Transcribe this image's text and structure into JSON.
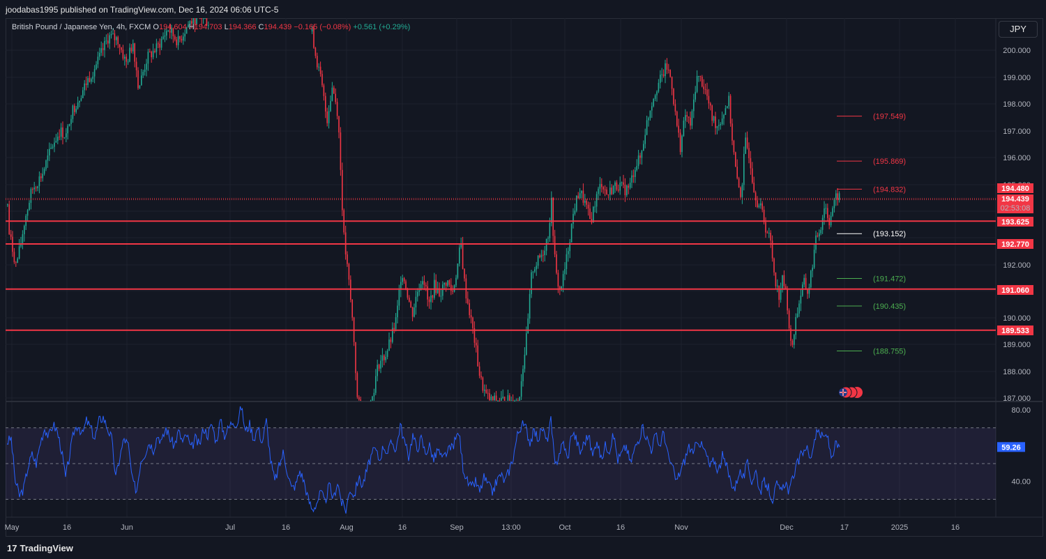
{
  "header": {
    "publisher": "joodabas1995 published on TradingView.com, Dec 16, 2024 06:06 UTC-5"
  },
  "legend": {
    "symbol": "British Pound / Japanese Yen, 4h, FXCM",
    "open_label": "O",
    "open": "194.604",
    "high_label": "H",
    "high": "194.703",
    "low_label": "L",
    "low": "194.366",
    "close_label": "C",
    "close": "194.439",
    "change": "−0.165 (−0.08%)",
    "change2": "+0.561 (+0.29%)"
  },
  "currency_button": "JPY",
  "footer": {
    "brand": "TradingView"
  },
  "colors": {
    "background": "#131722",
    "up": "#22ab94",
    "down": "#f23645",
    "rsi": "#2962ff",
    "level_line": "#f23645"
  },
  "chart_data": [
    {
      "type": "candlestick",
      "symbol": "British Pound / Japanese Yen",
      "interval": "4h",
      "y_axis": [
        "200.000",
        "199.000",
        "198.000",
        "197.000",
        "196.000",
        "195.000",
        "192.000",
        "191.000",
        "190.000",
        "189.000",
        "188.000",
        "187.000"
      ],
      "ylim": [
        186.9,
        201.3
      ],
      "x_axis": [
        "May",
        "16",
        "Jun",
        "Jul",
        "16",
        "Aug",
        "16",
        "Sep",
        "13:00",
        "Oct",
        "16",
        "Nov",
        "Dec",
        "17",
        "2025",
        "16"
      ],
      "horizontal_levels": [
        {
          "price": 194.48,
          "label": "194.480"
        },
        {
          "price": 194.439,
          "label": "194.439",
          "sublabel": "02:53:08"
        },
        {
          "price": 193.625,
          "label": "193.625"
        },
        {
          "price": 192.77,
          "label": "192.770"
        },
        {
          "price": 191.06,
          "label": "191.060"
        },
        {
          "price": 189.533,
          "label": "189.533"
        }
      ],
      "target_levels": [
        {
          "price": 197.549,
          "label": "(197.549)",
          "color": "#f23645"
        },
        {
          "price": 195.869,
          "label": "(195.869)",
          "color": "#f23645"
        },
        {
          "price": 194.832,
          "label": "(194.832)",
          "color": "#f23645"
        },
        {
          "price": 193.152,
          "label": "(193.152)",
          "color": "#ffffff"
        },
        {
          "price": 191.472,
          "label": "(191.472)",
          "color": "#4caf50"
        },
        {
          "price": 190.435,
          "label": "(190.435)",
          "color": "#4caf50"
        },
        {
          "price": 188.755,
          "label": "(188.755)",
          "color": "#4caf50"
        }
      ],
      "price_path": [
        [
          0,
          196.6
        ],
        [
          5,
          196.8
        ],
        [
          12,
          193.2
        ],
        [
          22,
          192.0
        ],
        [
          28,
          192.6
        ],
        [
          35,
          193.7
        ],
        [
          45,
          194.8
        ],
        [
          60,
          195.4
        ],
        [
          75,
          196.5
        ],
        [
          85,
          197.0
        ],
        [
          95,
          196.8
        ],
        [
          100,
          197.6
        ],
        [
          110,
          198.1
        ],
        [
          125,
          198.9
        ],
        [
          140,
          199.6
        ],
        [
          155,
          200.5
        ],
        [
          168,
          200.4
        ],
        [
          180,
          199.5
        ],
        [
          190,
          200.3
        ],
        [
          198,
          198.6
        ],
        [
          210,
          199.7
        ],
        [
          225,
          200.1
        ],
        [
          240,
          200.8
        ],
        [
          255,
          200.3
        ],
        [
          270,
          201.0
        ],
        [
          285,
          201.3
        ],
        [
          300,
          201.0
        ],
        [
          445,
          201.0
        ],
        [
          452,
          199.8
        ],
        [
          460,
          198.8
        ],
        [
          468,
          197.4
        ],
        [
          476,
          198.7
        ],
        [
          484,
          197.6
        ],
        [
          492,
          193.1
        ],
        [
          500,
          191.2
        ],
        [
          506,
          189.5
        ],
        [
          512,
          186.8
        ],
        [
          522,
          186.5
        ],
        [
          532,
          186.9
        ],
        [
          542,
          188.3
        ],
        [
          552,
          188.6
        ],
        [
          560,
          189.2
        ],
        [
          568,
          190.0
        ],
        [
          575,
          191.8
        ],
        [
          582,
          191.1
        ],
        [
          590,
          190.1
        ],
        [
          598,
          191.0
        ],
        [
          606,
          191.6
        ],
        [
          614,
          190.4
        ],
        [
          622,
          191.2
        ],
        [
          630,
          190.9
        ],
        [
          640,
          191.4
        ],
        [
          648,
          190.9
        ],
        [
          655,
          191.9
        ],
        [
          660,
          192.8
        ],
        [
          666,
          191.1
        ],
        [
          672,
          190.3
        ],
        [
          680,
          189.1
        ],
        [
          688,
          187.7
        ],
        [
          696,
          187.1
        ],
        [
          703,
          186.9
        ],
        [
          743,
          186.9
        ],
        [
          748,
          188.0
        ],
        [
          755,
          189.4
        ],
        [
          762,
          191.8
        ],
        [
          770,
          192.1
        ],
        [
          778,
          192.5
        ],
        [
          785,
          193.1
        ],
        [
          790,
          194.3
        ],
        [
          796,
          191.7
        ],
        [
          802,
          191.0
        ],
        [
          808,
          191.6
        ],
        [
          815,
          192.8
        ],
        [
          822,
          194.0
        ],
        [
          830,
          194.8
        ],
        [
          838,
          194.3
        ],
        [
          846,
          193.6
        ],
        [
          854,
          194.5
        ],
        [
          862,
          195.1
        ],
        [
          870,
          194.6
        ],
        [
          878,
          194.9
        ],
        [
          886,
          195.0
        ],
        [
          894,
          194.8
        ],
        [
          902,
          194.9
        ],
        [
          910,
          195.7
        ],
        [
          918,
          196.0
        ],
        [
          925,
          197.1
        ],
        [
          932,
          197.9
        ],
        [
          940,
          198.6
        ],
        [
          948,
          199.0
        ],
        [
          955,
          199.4
        ],
        [
          962,
          198.9
        ],
        [
          968,
          197.5
        ],
        [
          975,
          196.4
        ],
        [
          982,
          197.6
        ],
        [
          990,
          197.2
        ],
        [
          998,
          199.0
        ],
        [
          1005,
          198.9
        ],
        [
          1012,
          198.4
        ],
        [
          1020,
          197.5
        ],
        [
          1028,
          197.2
        ],
        [
          1036,
          197.6
        ],
        [
          1044,
          198.2
        ],
        [
          1050,
          196.5
        ],
        [
          1056,
          195.1
        ],
        [
          1062,
          194.6
        ],
        [
          1068,
          196.6
        ],
        [
          1074,
          196.1
        ],
        [
          1080,
          194.9
        ],
        [
          1086,
          194.3
        ],
        [
          1092,
          194.0
        ],
        [
          1098,
          193.3
        ],
        [
          1104,
          192.9
        ],
        [
          1110,
          191.6
        ],
        [
          1116,
          190.8
        ],
        [
          1122,
          191.5
        ],
        [
          1128,
          190.6
        ],
        [
          1134,
          188.7
        ],
        [
          1140,
          189.9
        ],
        [
          1146,
          190.7
        ],
        [
          1152,
          191.3
        ],
        [
          1158,
          190.9
        ],
        [
          1164,
          192.0
        ],
        [
          1170,
          193.0
        ],
        [
          1176,
          193.4
        ],
        [
          1182,
          194.3
        ],
        [
          1188,
          193.6
        ],
        [
          1194,
          194.2
        ],
        [
          1200,
          194.6
        ],
        [
          1205,
          194.44
        ]
      ]
    },
    {
      "type": "line",
      "name": "RSI",
      "y_axis": [
        "80.00",
        "40.00"
      ],
      "ylim": [
        20,
        82
      ],
      "bands": [
        70,
        50,
        30
      ],
      "last_value": "59.26",
      "values": [
        [
          10,
          62
        ],
        [
          16,
          64
        ],
        [
          22,
          40
        ],
        [
          28,
          32
        ],
        [
          34,
          36
        ],
        [
          40,
          48
        ],
        [
          46,
          55
        ],
        [
          52,
          50
        ],
        [
          58,
          62
        ],
        [
          64,
          70
        ],
        [
          70,
          65
        ],
        [
          76,
          72
        ],
        [
          82,
          68
        ],
        [
          88,
          58
        ],
        [
          94,
          42
        ],
        [
          100,
          55
        ],
        [
          106,
          68
        ],
        [
          112,
          72
        ],
        [
          118,
          66
        ],
        [
          124,
          74
        ],
        [
          130,
          70
        ],
        [
          136,
          64
        ],
        [
          142,
          74
        ],
        [
          148,
          76
        ],
        [
          154,
          70
        ],
        [
          160,
          64
        ],
        [
          166,
          42
        ],
        [
          172,
          54
        ],
        [
          178,
          64
        ],
        [
          184,
          60
        ],
        [
          190,
          40
        ],
        [
          196,
          35
        ],
        [
          202,
          52
        ],
        [
          208,
          56
        ],
        [
          214,
          62
        ],
        [
          220,
          58
        ],
        [
          226,
          66
        ],
        [
          232,
          62
        ],
        [
          238,
          70
        ],
        [
          244,
          64
        ],
        [
          250,
          60
        ],
        [
          256,
          68
        ],
        [
          262,
          62
        ],
        [
          268,
          66
        ],
        [
          274,
          58
        ],
        [
          280,
          64
        ],
        [
          286,
          60
        ],
        [
          292,
          70
        ],
        [
          298,
          66
        ],
        [
          304,
          72
        ],
        [
          310,
          62
        ],
        [
          316,
          74
        ],
        [
          322,
          66
        ],
        [
          328,
          70
        ],
        [
          334,
          74
        ],
        [
          340,
          72
        ],
        [
          346,
          82
        ],
        [
          352,
          68
        ],
        [
          358,
          72
        ],
        [
          364,
          64
        ],
        [
          370,
          70
        ],
        [
          376,
          62
        ],
        [
          382,
          74
        ],
        [
          388,
          52
        ],
        [
          394,
          40
        ],
        [
          400,
          48
        ],
        [
          406,
          56
        ],
        [
          412,
          46
        ],
        [
          418,
          36
        ],
        [
          424,
          38
        ],
        [
          430,
          46
        ],
        [
          436,
          40
        ],
        [
          442,
          30
        ],
        [
          448,
          24
        ],
        [
          454,
          28
        ],
        [
          460,
          34
        ],
        [
          466,
          28
        ],
        [
          472,
          38
        ],
        [
          478,
          30
        ],
        [
          484,
          40
        ],
        [
          490,
          28
        ],
        [
          496,
          24
        ],
        [
          502,
          36
        ],
        [
          508,
          32
        ],
        [
          514,
          42
        ],
        [
          520,
          38
        ],
        [
          526,
          46
        ],
        [
          532,
          54
        ],
        [
          538,
          58
        ],
        [
          544,
          52
        ],
        [
          550,
          60
        ],
        [
          556,
          56
        ],
        [
          562,
          62
        ],
        [
          568,
          58
        ],
        [
          574,
          72
        ],
        [
          580,
          62
        ],
        [
          586,
          54
        ],
        [
          592,
          66
        ],
        [
          598,
          58
        ],
        [
          604,
          64
        ],
        [
          610,
          56
        ],
        [
          616,
          60
        ],
        [
          622,
          52
        ],
        [
          628,
          58
        ],
        [
          634,
          52
        ],
        [
          640,
          56
        ],
        [
          646,
          58
        ],
        [
          652,
          62
        ],
        [
          658,
          68
        ],
        [
          664,
          48
        ],
        [
          670,
          40
        ],
        [
          676,
          36
        ],
        [
          682,
          40
        ],
        [
          688,
          34
        ],
        [
          694,
          42
        ],
        [
          700,
          38
        ],
        [
          706,
          34
        ],
        [
          712,
          40
        ],
        [
          718,
          44
        ],
        [
          724,
          40
        ],
        [
          730,
          46
        ],
        [
          736,
          54
        ],
        [
          742,
          66
        ],
        [
          748,
          72
        ],
        [
          754,
          70
        ],
        [
          760,
          62
        ],
        [
          766,
          68
        ],
        [
          772,
          64
        ],
        [
          778,
          70
        ],
        [
          784,
          62
        ],
        [
          790,
          74
        ],
        [
          796,
          48
        ],
        [
          802,
          56
        ],
        [
          808,
          62
        ],
        [
          814,
          52
        ],
        [
          820,
          68
        ],
        [
          826,
          64
        ],
        [
          832,
          56
        ],
        [
          838,
          62
        ],
        [
          844,
          66
        ],
        [
          850,
          54
        ],
        [
          856,
          64
        ],
        [
          862,
          52
        ],
        [
          868,
          60
        ],
        [
          874,
          58
        ],
        [
          880,
          66
        ],
        [
          886,
          52
        ],
        [
          892,
          56
        ],
        [
          898,
          60
        ],
        [
          904,
          50
        ],
        [
          910,
          58
        ],
        [
          916,
          64
        ],
        [
          922,
          70
        ],
        [
          928,
          64
        ],
        [
          934,
          58
        ],
        [
          940,
          66
        ],
        [
          946,
          60
        ],
        [
          952,
          68
        ],
        [
          958,
          54
        ],
        [
          964,
          48
        ],
        [
          970,
          40
        ],
        [
          976,
          46
        ],
        [
          982,
          52
        ],
        [
          988,
          60
        ],
        [
          994,
          54
        ],
        [
          1000,
          64
        ],
        [
          1006,
          60
        ],
        [
          1012,
          56
        ],
        [
          1018,
          48
        ],
        [
          1024,
          52
        ],
        [
          1030,
          46
        ],
        [
          1036,
          54
        ],
        [
          1042,
          48
        ],
        [
          1048,
          40
        ],
        [
          1054,
          36
        ],
        [
          1060,
          46
        ],
        [
          1066,
          42
        ],
        [
          1072,
          50
        ],
        [
          1078,
          40
        ],
        [
          1084,
          46
        ],
        [
          1090,
          34
        ],
        [
          1096,
          40
        ],
        [
          1102,
          36
        ],
        [
          1108,
          30
        ],
        [
          1114,
          38
        ],
        [
          1120,
          34
        ],
        [
          1126,
          40
        ],
        [
          1132,
          34
        ],
        [
          1138,
          44
        ],
        [
          1144,
          50
        ],
        [
          1150,
          56
        ],
        [
          1156,
          60
        ],
        [
          1162,
          52
        ],
        [
          1168,
          64
        ],
        [
          1174,
          68
        ],
        [
          1180,
          64
        ],
        [
          1186,
          66
        ],
        [
          1192,
          54
        ],
        [
          1198,
          60
        ],
        [
          1204,
          59.26
        ]
      ]
    }
  ]
}
